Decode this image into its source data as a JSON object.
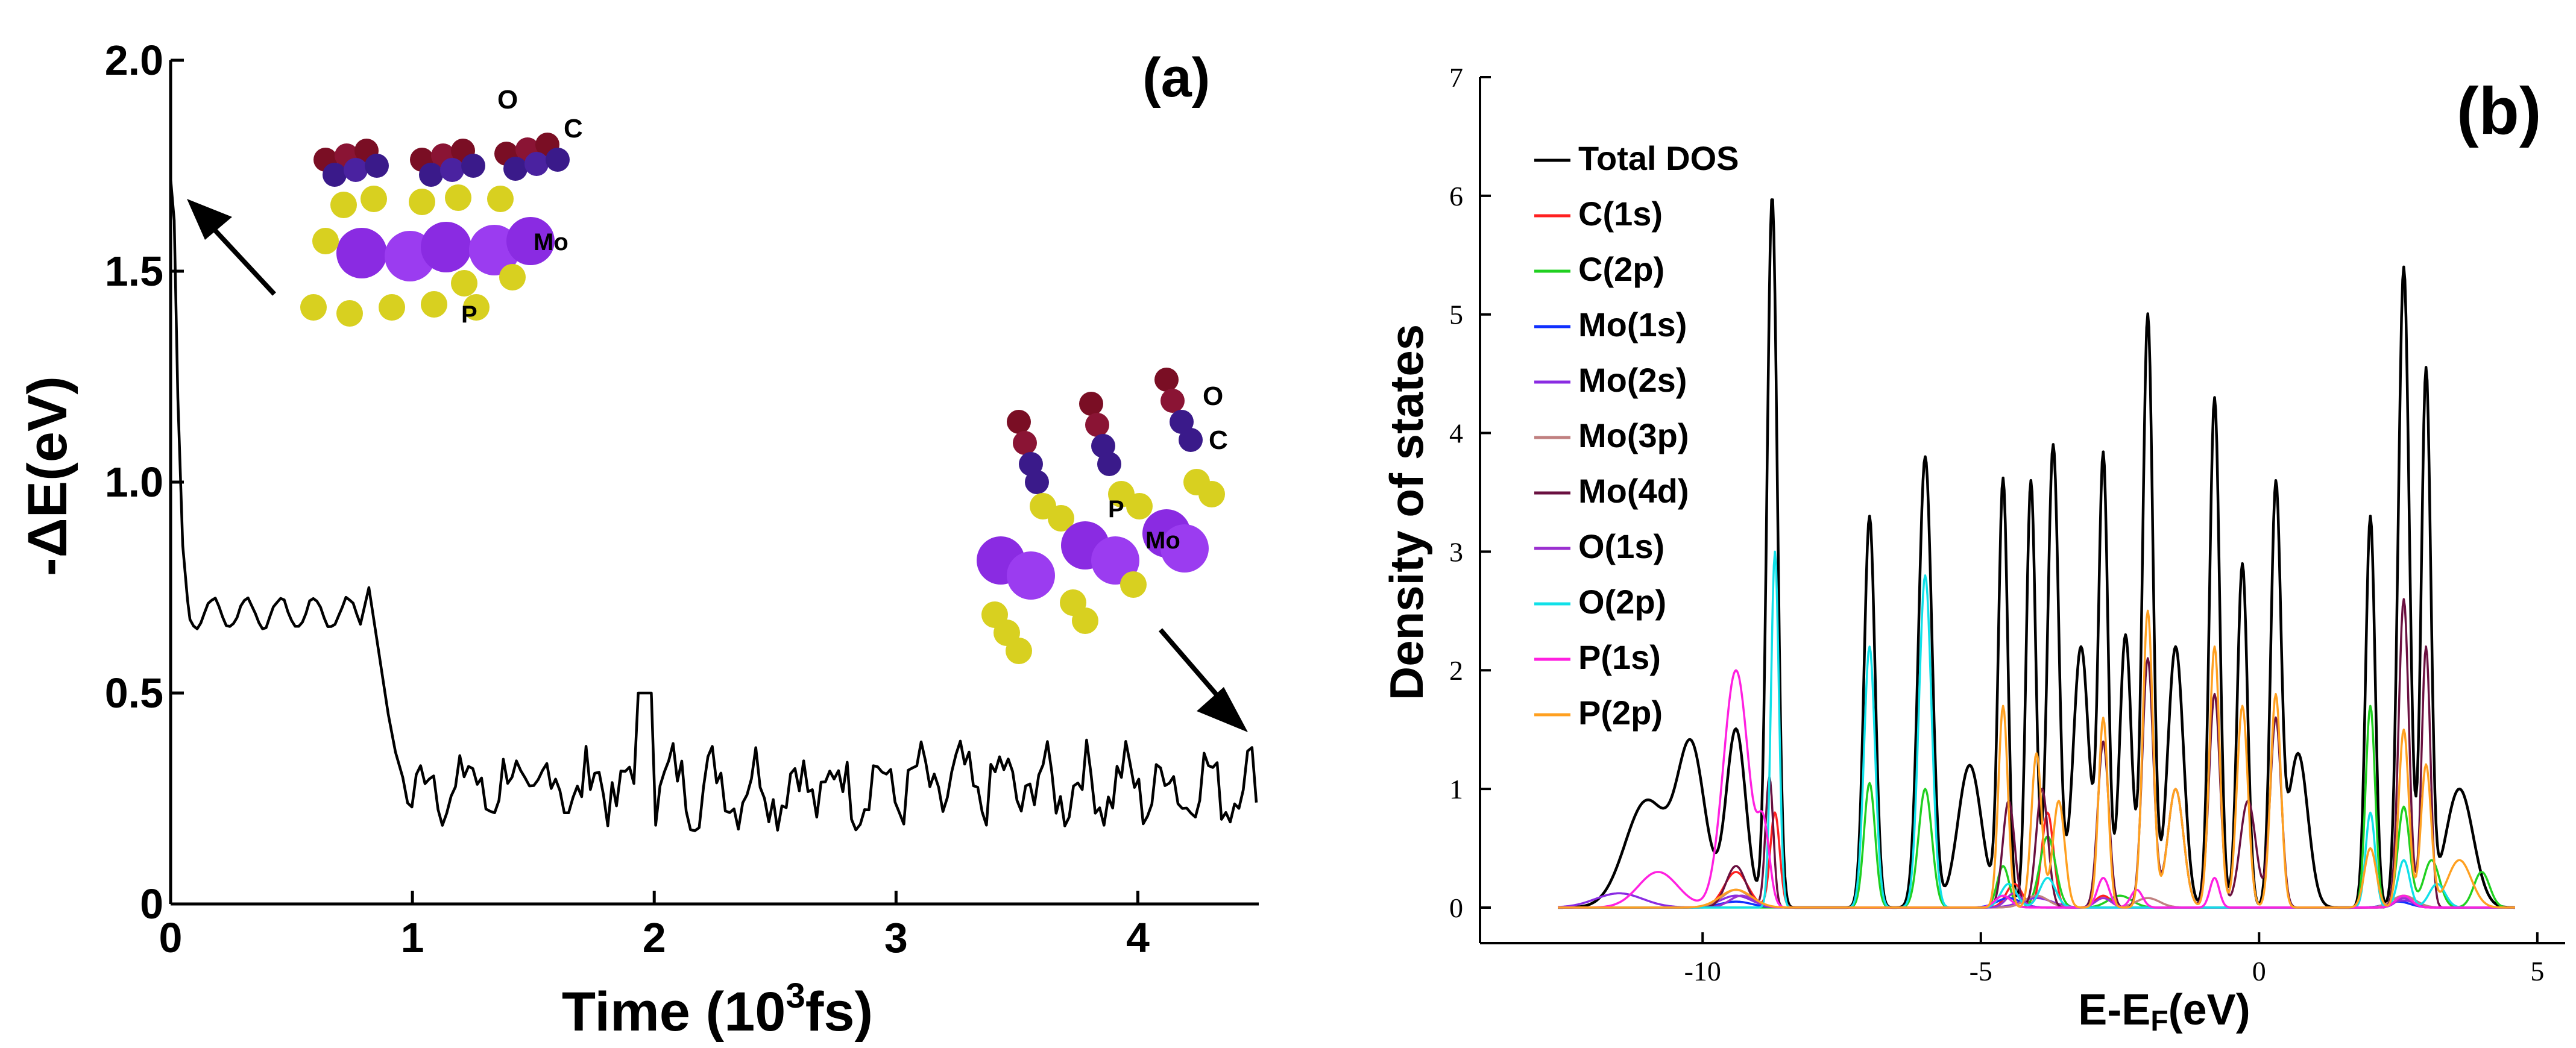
{
  "chart_data": [
    {
      "type": "line",
      "panel_label": "(a)",
      "xlabel_prefix": "Time (10",
      "xlabel_sup": "3",
      "xlabel_suffix": "fs)",
      "ylabel": "-ΔE(eV)",
      "xlim": [
        0,
        4.5
      ],
      "ylim": [
        0,
        2.0
      ],
      "x_ticks": [
        0,
        1,
        2,
        3,
        4
      ],
      "x_tick_labels": [
        "0",
        "1",
        "2",
        "3",
        "4"
      ],
      "y_ticks": [
        0,
        0.5,
        1.0,
        1.5,
        2.0
      ],
      "y_tick_labels": [
        "0",
        "0.5",
        "1.0",
        "1.5",
        "2.0"
      ],
      "series_color": "#000000",
      "description_points": {
        "x": [
          0.0,
          0.02,
          0.06,
          0.12,
          0.2,
          0.3,
          0.4,
          0.5,
          0.6,
          0.7,
          0.8,
          0.85,
          0.9,
          0.95,
          1.0
        ],
        "y": [
          1.72,
          1.6,
          0.95,
          0.68,
          0.72,
          0.68,
          0.72,
          0.7,
          0.69,
          0.72,
          0.74,
          0.62,
          0.4,
          0.33,
          0.28
        ]
      },
      "plateau_mean_after_1": 0.28,
      "plateau_amplitude": 0.09,
      "annotations": {
        "top_inset": {
          "label_O": "O",
          "label_C": "C",
          "label_Mo": "Mo",
          "label_P": "P"
        },
        "bottom_inset": {
          "label_O": "O",
          "label_C": "C",
          "label_Mo": "Mo",
          "label_P": "P"
        }
      }
    },
    {
      "type": "line",
      "panel_label": "(b)",
      "xlabel_prefix": "E-E",
      "xlabel_sub": "F",
      "xlabel_suffix": "(eV)",
      "ylabel": "Density of states",
      "xlim": [
        -14,
        5.5
      ],
      "ylim": [
        -0.3,
        7.0
      ],
      "x_ticks": [
        -10,
        -5,
        0,
        5
      ],
      "x_tick_labels": [
        "-10",
        "-5",
        "0",
        "5"
      ],
      "y_ticks": [
        0,
        1,
        2,
        3,
        4,
        5,
        6,
        7
      ],
      "y_tick_labels": [
        "0",
        "1",
        "2",
        "3",
        "4",
        "5",
        "6",
        "7"
      ],
      "legend_position": "top-left",
      "series": [
        {
          "name": "Total DOS",
          "color": "#000000",
          "base": 0.0,
          "tails": [
            [
              -12.0,
              0.42
            ],
            [
              -9.0,
              0.5
            ],
            [
              4.5,
              0.3
            ]
          ],
          "peaks": [
            [
              -11.0,
              0.9,
              0.55
            ],
            [
              -10.2,
              1.3,
              0.35
            ],
            [
              -9.4,
              1.5,
              0.25
            ],
            [
              -8.75,
              6.0,
              0.13
            ],
            [
              -7.0,
              3.3,
              0.14
            ],
            [
              -6.0,
              3.8,
              0.17
            ],
            [
              -5.2,
              1.2,
              0.3
            ],
            [
              -4.6,
              3.6,
              0.12
            ],
            [
              -4.1,
              3.6,
              0.12
            ],
            [
              -3.7,
              3.9,
              0.14
            ],
            [
              -3.2,
              2.2,
              0.2
            ],
            [
              -2.8,
              3.8,
              0.12
            ],
            [
              -2.4,
              2.3,
              0.15
            ],
            [
              -2.0,
              5.0,
              0.13
            ],
            [
              -1.5,
              2.2,
              0.2
            ],
            [
              -0.8,
              4.3,
              0.13
            ],
            [
              -0.3,
              2.9,
              0.13
            ],
            [
              0.3,
              3.5,
              0.13
            ],
            [
              0.7,
              1.3,
              0.25
            ],
            [
              2.0,
              3.3,
              0.12
            ],
            [
              2.6,
              5.4,
              0.14
            ],
            [
              3.0,
              4.5,
              0.12
            ],
            [
              3.6,
              1.0,
              0.35
            ]
          ]
        },
        {
          "name": "C(1s)",
          "color": "#ff2020",
          "base": 0.0,
          "tails": [],
          "peaks": [
            [
              -9.4,
              0.3,
              0.3
            ],
            [
              -8.7,
              0.8,
              0.12
            ],
            [
              -4.4,
              0.2,
              0.2
            ],
            [
              -3.8,
              0.8,
              0.15
            ],
            [
              -2.8,
              0.1,
              0.2
            ],
            [
              2.6,
              0.1,
              0.2
            ]
          ]
        },
        {
          "name": "C(2p)",
          "color": "#20d020",
          "base": 0.0,
          "tails": [],
          "peaks": [
            [
              -7.0,
              1.05,
              0.14
            ],
            [
              -6.0,
              1.0,
              0.17
            ],
            [
              -4.6,
              0.35,
              0.15
            ],
            [
              -3.8,
              0.6,
              0.2
            ],
            [
              -2.5,
              0.1,
              0.3
            ],
            [
              2.0,
              1.7,
              0.12
            ],
            [
              2.6,
              0.85,
              0.15
            ],
            [
              3.1,
              0.4,
              0.2
            ],
            [
              4.0,
              0.3,
              0.2
            ]
          ]
        },
        {
          "name": "Mo(1s)",
          "color": "#1030ff",
          "base": 0.0,
          "tails": [],
          "peaks": [
            [
              -9.4,
              0.05,
              0.4
            ],
            [
              -4.5,
              0.08,
              0.3
            ],
            [
              2.5,
              0.05,
              0.3
            ]
          ]
        },
        {
          "name": "Mo(2s)",
          "color": "#8a2be2",
          "base": 0.0,
          "tails": [],
          "peaks": [
            [
              -11.5,
              0.12,
              0.6
            ],
            [
              -9.4,
              0.1,
              0.4
            ],
            [
              -4.0,
              0.08,
              0.4
            ],
            [
              2.6,
              0.06,
              0.3
            ]
          ]
        },
        {
          "name": "Mo(3p)",
          "color": "#c08080",
          "base": 0.0,
          "tails": [],
          "peaks": [
            [
              -9.4,
              0.15,
              0.35
            ],
            [
              -4.0,
              0.1,
              0.3
            ],
            [
              -2.0,
              0.08,
              0.3
            ],
            [
              2.6,
              0.1,
              0.3
            ]
          ]
        },
        {
          "name": "Mo(4d)",
          "color": "#6a1040",
          "base": 0.0,
          "tails": [],
          "peaks": [
            [
              -9.4,
              0.35,
              0.25
            ],
            [
              -8.8,
              1.1,
              0.1
            ],
            [
              -4.5,
              0.9,
              0.15
            ],
            [
              -3.9,
              1.0,
              0.15
            ],
            [
              -2.8,
              1.4,
              0.14
            ],
            [
              -2.0,
              2.1,
              0.14
            ],
            [
              -1.5,
              1.0,
              0.2
            ],
            [
              -0.8,
              1.8,
              0.14
            ],
            [
              0.3,
              1.6,
              0.14
            ],
            [
              -0.2,
              0.9,
              0.2
            ],
            [
              2.6,
              2.6,
              0.13
            ],
            [
              3.0,
              2.2,
              0.11
            ]
          ]
        },
        {
          "name": "O(1s)",
          "color": "#9b30d0",
          "base": 0.0,
          "tails": [],
          "peaks": [
            [
              -9.3,
              0.1,
              0.3
            ],
            [
              -4.4,
              0.12,
              0.2
            ],
            [
              -2.8,
              0.08,
              0.2
            ],
            [
              2.6,
              0.08,
              0.2
            ]
          ]
        },
        {
          "name": "O(2p)",
          "color": "#10e0e8",
          "base": 0.0,
          "tails": [],
          "peaks": [
            [
              -8.7,
              3.0,
              0.1
            ],
            [
              -7.0,
              2.2,
              0.14
            ],
            [
              -6.0,
              2.8,
              0.16
            ],
            [
              -4.5,
              0.2,
              0.2
            ],
            [
              -3.8,
              0.25,
              0.2
            ],
            [
              2.0,
              0.8,
              0.12
            ],
            [
              2.6,
              0.4,
              0.15
            ],
            [
              3.2,
              0.2,
              0.2
            ]
          ]
        },
        {
          "name": "P(1s)",
          "color": "#ff20e0",
          "base": 0.0,
          "tails": [],
          "peaks": [
            [
              -10.8,
              0.3,
              0.5
            ],
            [
              -9.4,
              2.0,
              0.32
            ],
            [
              -8.9,
              0.6,
              0.15
            ],
            [
              -4.6,
              0.1,
              0.2
            ],
            [
              -2.8,
              0.25,
              0.15
            ],
            [
              -2.2,
              0.15,
              0.15
            ],
            [
              -0.8,
              0.25,
              0.12
            ],
            [
              2.6,
              0.1,
              0.2
            ]
          ]
        },
        {
          "name": "P(2p)",
          "color": "#ffa020",
          "base": 0.0,
          "tails": [],
          "peaks": [
            [
              -9.4,
              0.15,
              0.4
            ],
            [
              -4.6,
              1.7,
              0.12
            ],
            [
              -4.0,
              1.3,
              0.13
            ],
            [
              -3.6,
              0.9,
              0.15
            ],
            [
              -2.8,
              1.6,
              0.12
            ],
            [
              -2.0,
              2.5,
              0.13
            ],
            [
              -1.5,
              1.0,
              0.2
            ],
            [
              -0.8,
              2.2,
              0.13
            ],
            [
              -0.3,
              1.7,
              0.14
            ],
            [
              0.3,
              1.8,
              0.13
            ],
            [
              2.0,
              0.5,
              0.15
            ],
            [
              2.6,
              1.5,
              0.13
            ],
            [
              3.0,
              1.2,
              0.13
            ],
            [
              3.6,
              0.4,
              0.3
            ]
          ]
        }
      ]
    }
  ]
}
